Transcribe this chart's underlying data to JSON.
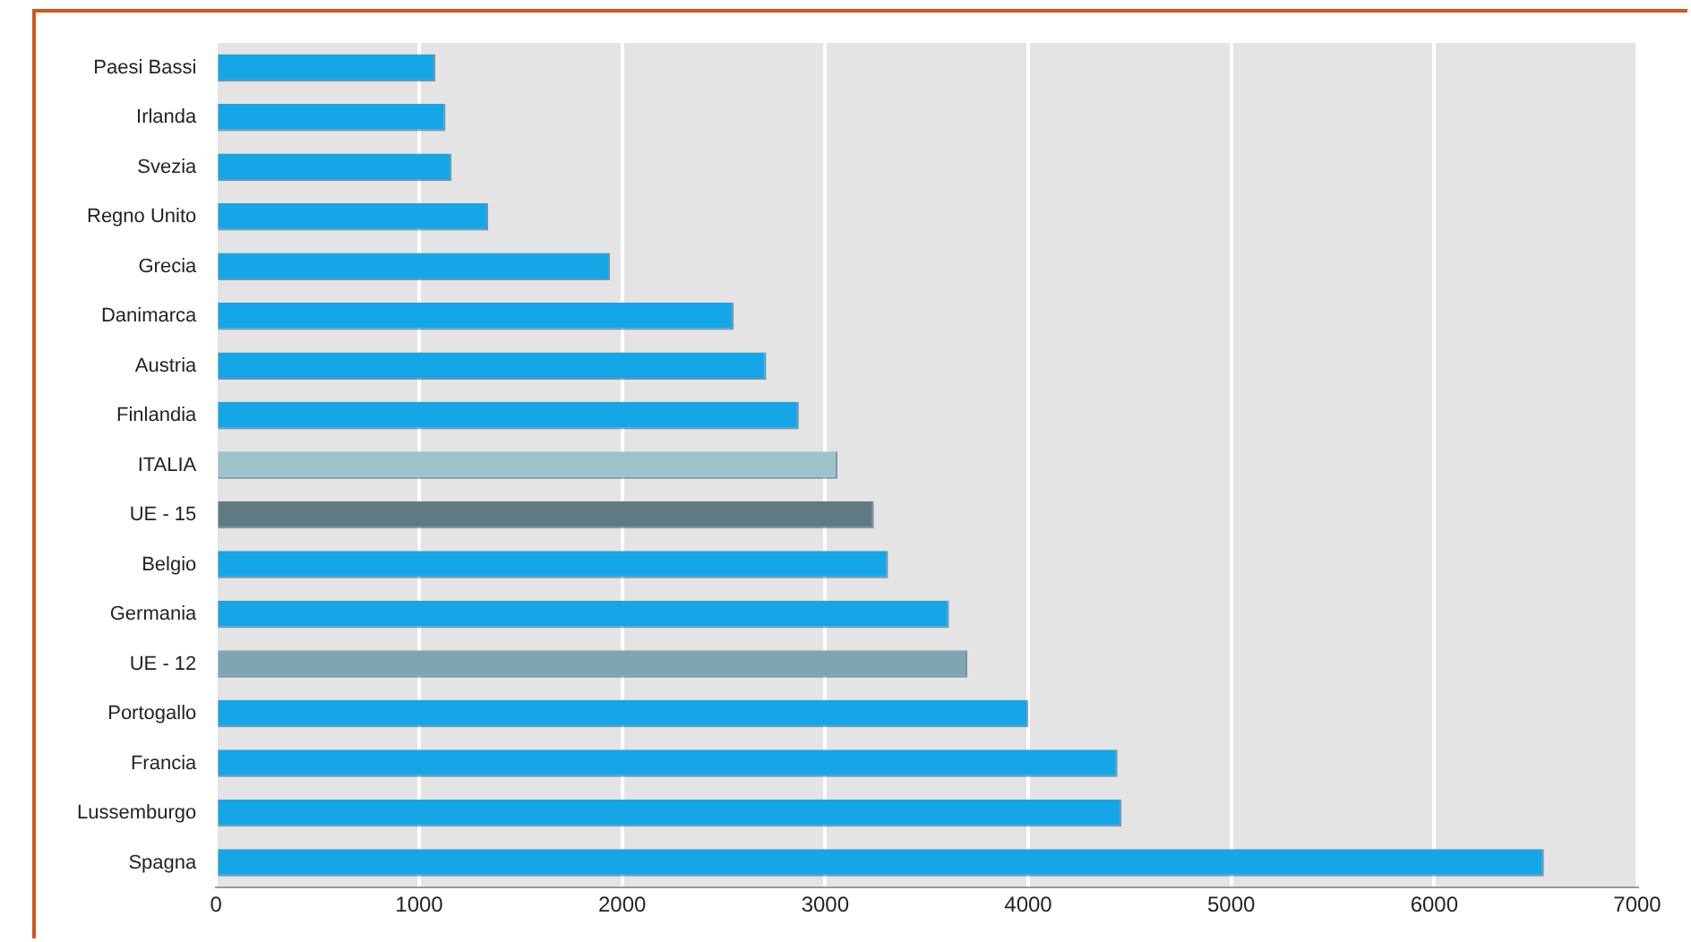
{
  "chart_data": {
    "type": "bar",
    "orientation": "horizontal",
    "categories": [
      "Paesi Bassi",
      "Irlanda",
      "Svezia",
      "Regno Unito",
      "Grecia",
      "Danimarca",
      "Austria",
      "Finlandia",
      "ITALIA",
      "UE - 15",
      "Belgio",
      "Germania",
      "UE - 12",
      "Portogallo",
      "Francia",
      "Lussemburgo",
      "Spagna"
    ],
    "values": [
      1080,
      1130,
      1160,
      1340,
      1940,
      2550,
      2710,
      2870,
      3060,
      3240,
      3310,
      3610,
      3700,
      4000,
      4440,
      4460,
      6540
    ],
    "colors": [
      "#14a6e6",
      "#14a6e6",
      "#14a6e6",
      "#14a6e6",
      "#14a6e6",
      "#14a6e6",
      "#14a6e6",
      "#14a6e6",
      "#9cc4cc",
      "#5f7a82",
      "#14a6e6",
      "#14a6e6",
      "#7ea6b0",
      "#14a6e6",
      "#14a6e6",
      "#14a6e6",
      "#14a6e6"
    ],
    "xlim": [
      0,
      7000
    ],
    "xticks": [
      0,
      1000,
      2000,
      3000,
      4000,
      5000,
      6000,
      7000
    ],
    "grid": "x",
    "legend": false
  }
}
